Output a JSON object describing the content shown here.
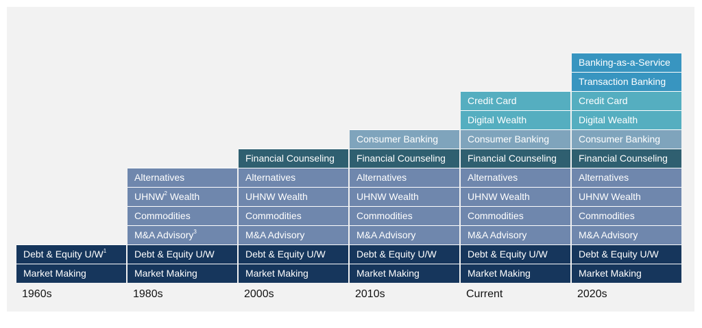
{
  "colors": {
    "market_making": "#16365c",
    "debt_equity": "#16365c",
    "ma_advisory": "#6f87ad",
    "commodities": "#6f87ad",
    "uhnw_wealth": "#6f87ad",
    "alternatives": "#6f87ad",
    "financial_counseling": "#2f5f70",
    "consumer_banking": "#7fa4bc",
    "digital_wealth": "#55aec0",
    "credit_card": "#55aec0",
    "transaction_banking": "#3895c0",
    "banking_as_a_service": "#3895c0"
  },
  "columns": [
    {
      "era": "1960s",
      "blocks": [
        {
          "key": "market_making",
          "label": "Market Making"
        },
        {
          "key": "debt_equity",
          "label": "Debt & Equity U/W",
          "sup": "1"
        }
      ]
    },
    {
      "era": "1980s",
      "blocks": [
        {
          "key": "market_making",
          "label": "Market Making"
        },
        {
          "key": "debt_equity",
          "label": "Debt & Equity U/W"
        },
        {
          "key": "ma_advisory",
          "label": "M&A Advisory",
          "sup": "3"
        },
        {
          "key": "commodities",
          "label": "Commodities"
        },
        {
          "key": "uhnw_wealth",
          "label": "UHNW",
          "sup": "2",
          "suffix": " Wealth"
        },
        {
          "key": "alternatives",
          "label": "Alternatives"
        }
      ]
    },
    {
      "era": "2000s",
      "blocks": [
        {
          "key": "market_making",
          "label": "Market Making"
        },
        {
          "key": "debt_equity",
          "label": "Debt & Equity U/W"
        },
        {
          "key": "ma_advisory",
          "label": "M&A Advisory"
        },
        {
          "key": "commodities",
          "label": "Commodities"
        },
        {
          "key": "uhnw_wealth",
          "label": "UHNW Wealth"
        },
        {
          "key": "alternatives",
          "label": "Alternatives"
        },
        {
          "key": "financial_counseling",
          "label": "Financial Counseling"
        }
      ]
    },
    {
      "era": "2010s",
      "blocks": [
        {
          "key": "market_making",
          "label": "Market Making"
        },
        {
          "key": "debt_equity",
          "label": "Debt & Equity U/W"
        },
        {
          "key": "ma_advisory",
          "label": "M&A Advisory"
        },
        {
          "key": "commodities",
          "label": "Commodities"
        },
        {
          "key": "uhnw_wealth",
          "label": "UHNW Wealth"
        },
        {
          "key": "alternatives",
          "label": "Alternatives"
        },
        {
          "key": "financial_counseling",
          "label": "Financial Counseling"
        },
        {
          "key": "consumer_banking",
          "label": "Consumer Banking"
        }
      ]
    },
    {
      "era": "Current",
      "blocks": [
        {
          "key": "market_making",
          "label": "Market Making"
        },
        {
          "key": "debt_equity",
          "label": "Debt & Equity U/W"
        },
        {
          "key": "ma_advisory",
          "label": "M&A Advisory"
        },
        {
          "key": "commodities",
          "label": "Commodities"
        },
        {
          "key": "uhnw_wealth",
          "label": "UHNW Wealth"
        },
        {
          "key": "alternatives",
          "label": "Alternatives"
        },
        {
          "key": "financial_counseling",
          "label": "Financial Counseling"
        },
        {
          "key": "consumer_banking",
          "label": "Consumer Banking"
        },
        {
          "key": "digital_wealth",
          "label": "Digital Wealth"
        },
        {
          "key": "credit_card",
          "label": "Credit Card"
        }
      ]
    },
    {
      "era": "2020s",
      "blocks": [
        {
          "key": "market_making",
          "label": "Market Making"
        },
        {
          "key": "debt_equity",
          "label": "Debt & Equity U/W"
        },
        {
          "key": "ma_advisory",
          "label": "M&A Advisory"
        },
        {
          "key": "commodities",
          "label": "Commodities"
        },
        {
          "key": "uhnw_wealth",
          "label": "UHNW Wealth"
        },
        {
          "key": "alternatives",
          "label": "Alternatives"
        },
        {
          "key": "financial_counseling",
          "label": "Financial Counseling"
        },
        {
          "key": "consumer_banking",
          "label": "Consumer Banking"
        },
        {
          "key": "digital_wealth",
          "label": "Digital Wealth"
        },
        {
          "key": "credit_card",
          "label": "Credit Card"
        },
        {
          "key": "transaction_banking",
          "label": "Transaction Banking"
        },
        {
          "key": "banking_as_a_service",
          "label": "Banking-as-a-Service"
        }
      ]
    }
  ]
}
